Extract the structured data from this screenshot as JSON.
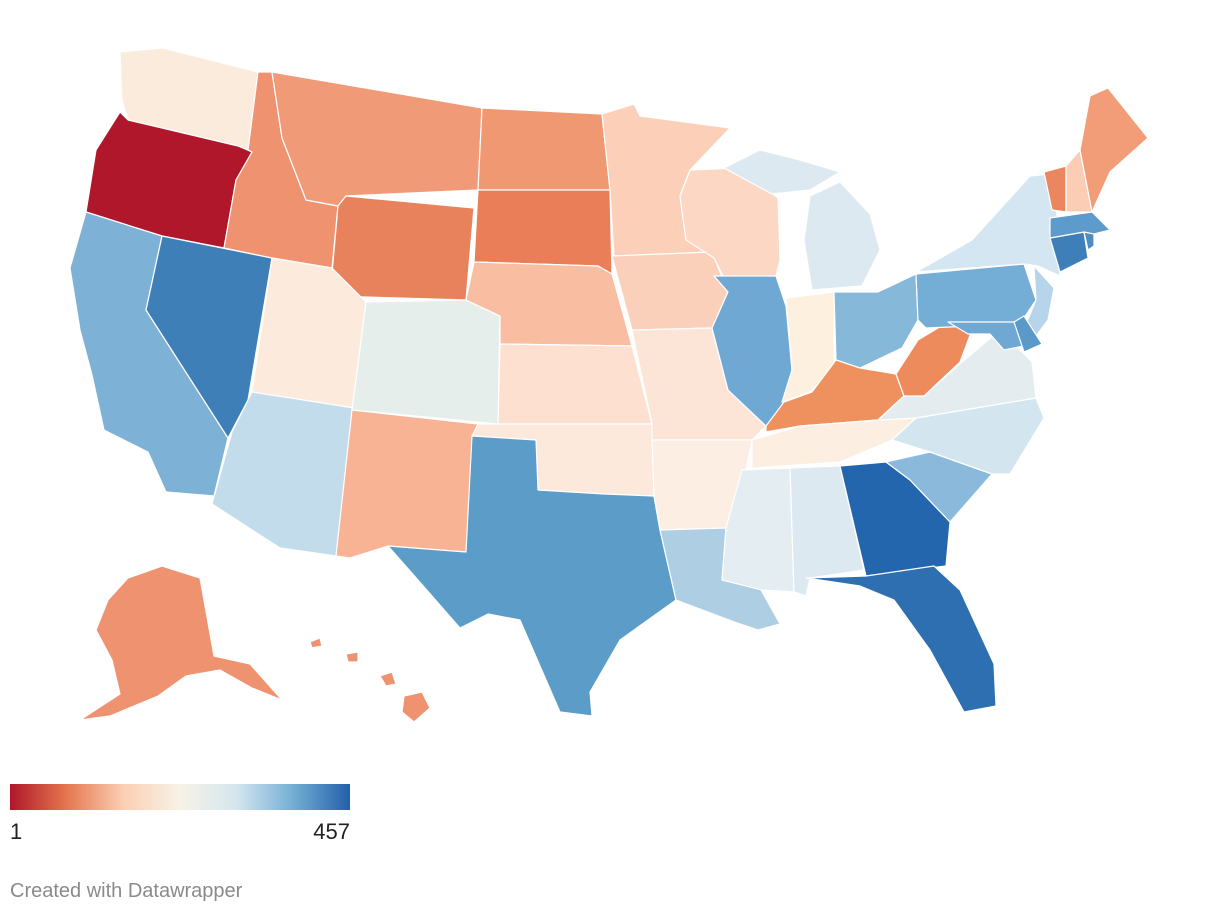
{
  "chart_data": {
    "type": "choropleth",
    "region": "United States",
    "color_scale": [
      "#b0172a",
      "#e5774f",
      "#fbcfb4",
      "#f7f2e6",
      "#d4e6ef",
      "#74aed4",
      "#2160ab"
    ],
    "legend": {
      "min": "1",
      "max": "457"
    },
    "states": [
      {
        "code": "OR",
        "color": "#b0172a"
      },
      {
        "code": "WA",
        "color": "#fbebdd"
      },
      {
        "code": "CA",
        "color": "#7db1d6"
      },
      {
        "code": "NV",
        "color": "#3f7fb8"
      },
      {
        "code": "ID",
        "color": "#ee9270"
      },
      {
        "code": "MT",
        "color": "#f09a78"
      },
      {
        "code": "WY",
        "color": "#e8825c"
      },
      {
        "code": "UT",
        "color": "#fcebdc"
      },
      {
        "code": "AZ",
        "color": "#c3dcec"
      },
      {
        "code": "CO",
        "color": "#e6eeec"
      },
      {
        "code": "NM",
        "color": "#f8b294"
      },
      {
        "code": "ND",
        "color": "#f09872"
      },
      {
        "code": "SD",
        "color": "#e97e58"
      },
      {
        "code": "NE",
        "color": "#f9bea2"
      },
      {
        "code": "KS",
        "color": "#fde0d0"
      },
      {
        "code": "OK",
        "color": "#fce9db"
      },
      {
        "code": "TX",
        "color": "#5b9cc9"
      },
      {
        "code": "MN",
        "color": "#fccfb8"
      },
      {
        "code": "IA",
        "color": "#fbd0ba"
      },
      {
        "code": "MO",
        "color": "#fce5d7"
      },
      {
        "code": "AR",
        "color": "#fdeee3"
      },
      {
        "code": "LA",
        "color": "#aecee4"
      },
      {
        "code": "WI",
        "color": "#fcd7c3"
      },
      {
        "code": "IL",
        "color": "#6fa9d3"
      },
      {
        "code": "MI",
        "color": "#dde9f0"
      },
      {
        "code": "IN",
        "color": "#fdf0df"
      },
      {
        "code": "OH",
        "color": "#85b8d9"
      },
      {
        "code": "KY",
        "color": "#ee915f"
      },
      {
        "code": "TN",
        "color": "#fcefe2"
      },
      {
        "code": "MS",
        "color": "#e3edf2"
      },
      {
        "code": "AL",
        "color": "#dce9f0"
      },
      {
        "code": "GA",
        "color": "#2366ae"
      },
      {
        "code": "FL",
        "color": "#2e6fb2"
      },
      {
        "code": "SC",
        "color": "#8ab9dc"
      },
      {
        "code": "NC",
        "color": "#d3e5ef"
      },
      {
        "code": "VA",
        "color": "#e4ecf0"
      },
      {
        "code": "WV",
        "color": "#ee8b5c"
      },
      {
        "code": "PA",
        "color": "#74add5"
      },
      {
        "code": "NY",
        "color": "#d4e6f1"
      },
      {
        "code": "NJ",
        "color": "#b6d4ea"
      },
      {
        "code": "MD",
        "color": "#6fa8d3"
      },
      {
        "code": "DE",
        "color": "#5a99c8"
      },
      {
        "code": "CT",
        "color": "#3f7fb9"
      },
      {
        "code": "RI",
        "color": "#4f8cc1"
      },
      {
        "code": "MA",
        "color": "#5c9bcb"
      },
      {
        "code": "VT",
        "color": "#eb865f"
      },
      {
        "code": "NH",
        "color": "#fbcdb4"
      },
      {
        "code": "ME",
        "color": "#f29d78"
      },
      {
        "code": "AK",
        "color": "#ee9270"
      },
      {
        "code": "HI",
        "color": "#ee9270"
      }
    ]
  },
  "credit": "Created with Datawrapper"
}
